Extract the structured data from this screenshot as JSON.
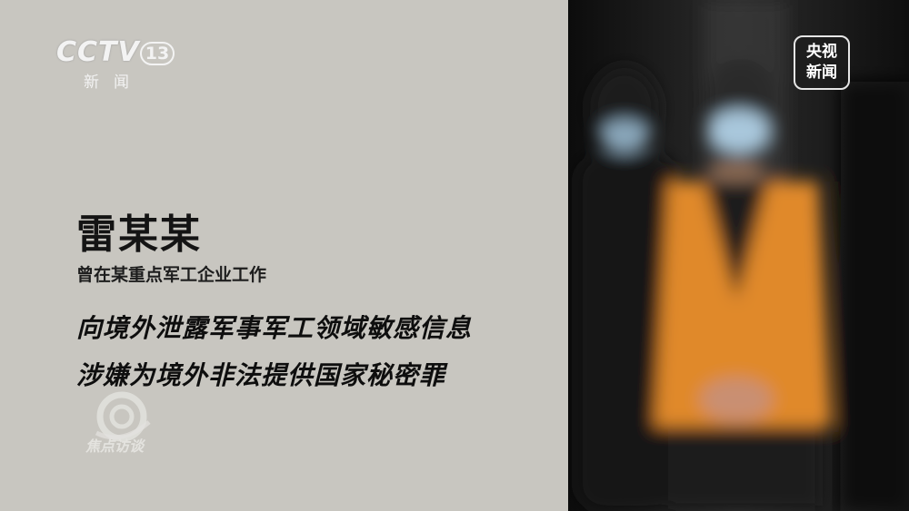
{
  "channel_logo": {
    "brand": "CCTV",
    "number": "13",
    "subtitle": "新闻"
  },
  "corner_badge": {
    "line1": "央视",
    "line2": "新闻"
  },
  "caption": {
    "name": "雷某某",
    "role": "曾在某重点军工企业工作",
    "line1": "向境外泄露军事军工领域敏感信息",
    "line2": "涉嫌为境外非法提供国家秘密罪"
  },
  "program_watermark": {
    "title": "焦点访谈"
  },
  "colors": {
    "left_panel": "#c8c6c0",
    "vest_orange": "#e0892a",
    "mask_blue": "#a9c7dc"
  }
}
